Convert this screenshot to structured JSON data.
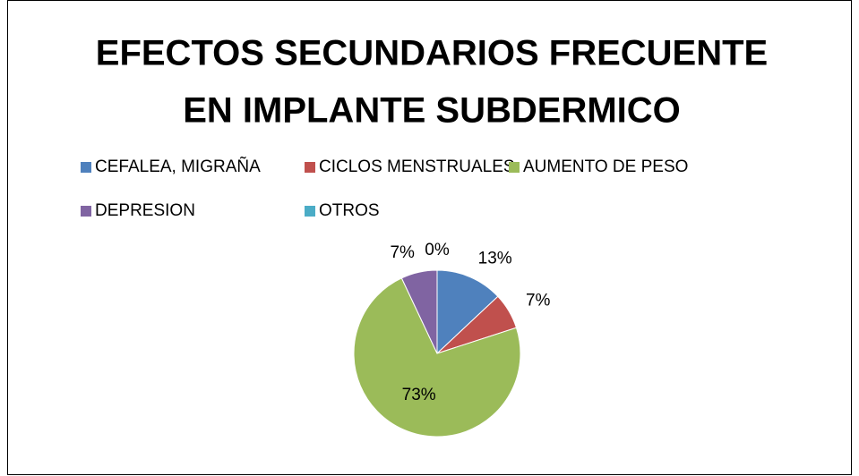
{
  "chart_data": {
    "type": "pie",
    "title": [
      "EFECTOS SECUNDARIOS FRECUENTE",
      "EN IMPLANTE SUBDERMICO"
    ],
    "categories": [
      "CEFALEA, MIGRAÑA",
      "CICLOS MENSTRUALES",
      "AUMENTO DE PESO",
      "DEPRESION",
      "OTROS"
    ],
    "values": [
      13,
      7,
      73,
      7,
      0
    ],
    "value_labels": [
      "13%",
      "7%",
      "73%",
      "7%",
      "0%"
    ],
    "colors": [
      "#4f81bd",
      "#c0504d",
      "#9bbb59",
      "#8064a2",
      "#4bacc6"
    ],
    "legend": "top"
  }
}
